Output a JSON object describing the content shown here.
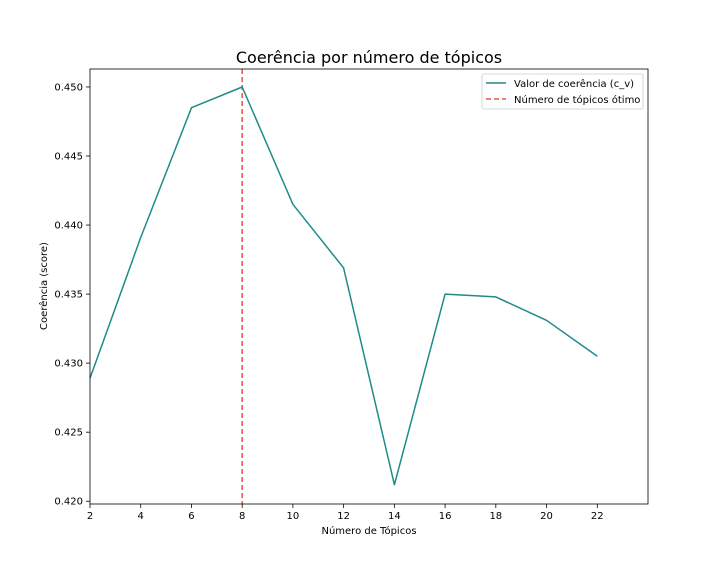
{
  "chart_data": {
    "type": "line",
    "title": "Coerência por número de tópicos",
    "xlabel": "Número de Tópicos",
    "ylabel": "Coerência (score)",
    "xlim": [
      2,
      24
    ],
    "ylim": [
      0.4198,
      0.4513
    ],
    "xticks": [
      2,
      4,
      6,
      8,
      10,
      12,
      14,
      16,
      18,
      20,
      22
    ],
    "yticks": [
      "0.420",
      "0.425",
      "0.430",
      "0.435",
      "0.440",
      "0.445",
      "0.450"
    ],
    "series": [
      {
        "name": "Valor de coerência (c_v)",
        "color": "#1f8b8b",
        "x": [
          2,
          4,
          6,
          8,
          10,
          12,
          14,
          16,
          18,
          20,
          22
        ],
        "y": [
          0.4289,
          0.4391,
          0.4485,
          0.45,
          0.4415,
          0.4369,
          0.4212,
          0.435,
          0.4348,
          0.4331,
          0.4305
        ]
      }
    ],
    "reference_lines": [
      {
        "name": "Número de tópicos ótimo",
        "x": 8,
        "color": "#e8554a",
        "style": "dashed"
      }
    ],
    "legend_position": "top-right",
    "grid": false
  }
}
